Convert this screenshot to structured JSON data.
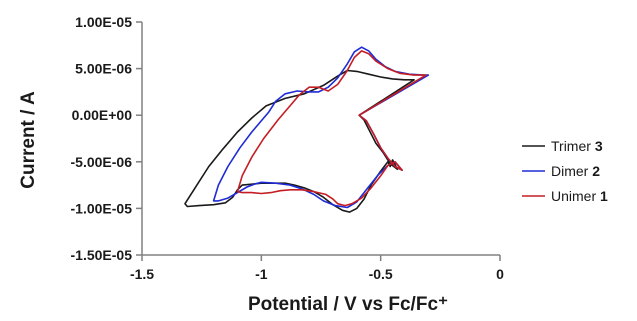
{
  "chart_data": {
    "type": "line",
    "title": "",
    "xlabel": "Potential / V vs Fc/Fc⁺",
    "ylabel": "Current / A",
    "xlim": [
      -1.5,
      0
    ],
    "ylim": [
      -1.5e-05,
      1e-05
    ],
    "x_ticks": [
      -1.5,
      -1,
      -0.5,
      0
    ],
    "x_tick_labels": [
      "-1.5",
      "-1",
      "-0.5",
      "0"
    ],
    "y_ticks": [
      1e-05,
      5e-06,
      0,
      -5e-06,
      -1e-05,
      -1.5e-05
    ],
    "y_tick_labels": [
      "1.00E-05",
      "5.00E-06",
      "0.00E+00",
      "-5.00E-06",
      "-1.00E-05",
      "-1.50E-05"
    ],
    "grid": false,
    "legend_position": "right",
    "series": [
      {
        "name": "Trimer",
        "label_suffix": "3",
        "color": "#1a1a1a",
        "points": [
          [
            -0.59,
            0.0
          ],
          [
            -0.57,
            -5e-07
          ],
          [
            -0.55,
            -1.5e-06
          ],
          [
            -0.52,
            -3e-06
          ],
          [
            -0.49,
            -4e-06
          ],
          [
            -0.46,
            -5.2e-06
          ],
          [
            -0.43,
            -5.8e-06
          ],
          [
            -0.45,
            -4.8e-06
          ],
          [
            -0.46,
            -5.5e-06
          ],
          [
            -0.47,
            -5e-06
          ],
          [
            -0.5,
            -6e-06
          ],
          [
            -0.54,
            -7.5e-06
          ],
          [
            -0.57,
            -9e-06
          ],
          [
            -0.6,
            -1e-05
          ],
          [
            -0.63,
            -1.04e-05
          ],
          [
            -0.66,
            -1.02e-05
          ],
          [
            -0.7,
            -9.6e-06
          ],
          [
            -0.74,
            -8.8e-06
          ],
          [
            -0.78,
            -8.2e-06
          ],
          [
            -0.82,
            -7.8e-06
          ],
          [
            -0.86,
            -7.5e-06
          ],
          [
            -0.9,
            -7.3e-06
          ],
          [
            -0.95,
            -7.3e-06
          ],
          [
            -1.0,
            -7.3e-06
          ],
          [
            -1.04,
            -7.4e-06
          ],
          [
            -1.08,
            -7.5e-06
          ],
          [
            -1.1,
            -8e-06
          ],
          [
            -1.12,
            -8.8e-06
          ],
          [
            -1.15,
            -9.4e-06
          ],
          [
            -1.2,
            -9.6e-06
          ],
          [
            -1.26,
            -9.7e-06
          ],
          [
            -1.31,
            -9.8e-06
          ],
          [
            -1.32,
            -9.5e-06
          ],
          [
            -1.27,
            -7.5e-06
          ],
          [
            -1.22,
            -5.5e-06
          ],
          [
            -1.16,
            -3.6e-06
          ],
          [
            -1.1,
            -1.8e-06
          ],
          [
            -1.04,
            -3e-07
          ],
          [
            -0.98,
            1e-06
          ],
          [
            -0.9,
            1.8e-06
          ],
          [
            -0.82,
            2.3e-06
          ],
          [
            -0.74,
            3.2e-06
          ],
          [
            -0.68,
            4.2e-06
          ],
          [
            -0.64,
            4.8e-06
          ],
          [
            -0.6,
            4.7e-06
          ],
          [
            -0.55,
            4.4e-06
          ],
          [
            -0.5,
            4.1e-06
          ],
          [
            -0.45,
            3.9e-06
          ],
          [
            -0.4,
            3.8e-06
          ],
          [
            -0.36,
            3.8e-06
          ]
        ]
      },
      {
        "name": "Dimer",
        "label_suffix": "2",
        "color": "#1f2bd6",
        "points": [
          [
            -0.59,
            0.0
          ],
          [
            -0.56,
            -6e-07
          ],
          [
            -0.53,
            -2e-06
          ],
          [
            -0.5,
            -3.5e-06
          ],
          [
            -0.47,
            -4.6e-06
          ],
          [
            -0.44,
            -5.5e-06
          ],
          [
            -0.41,
            -5.9e-06
          ],
          [
            -0.44,
            -5e-06
          ],
          [
            -0.47,
            -5.4e-06
          ],
          [
            -0.51,
            -6.4e-06
          ],
          [
            -0.56,
            -8e-06
          ],
          [
            -0.6,
            -9.3e-06
          ],
          [
            -0.64,
            -9.9e-06
          ],
          [
            -0.69,
            -9.7e-06
          ],
          [
            -0.74,
            -9.2e-06
          ],
          [
            -0.78,
            -8.5e-06
          ],
          [
            -0.83,
            -7.9e-06
          ],
          [
            -0.88,
            -7.5e-06
          ],
          [
            -0.94,
            -7.3e-06
          ],
          [
            -1.0,
            -7.2e-06
          ],
          [
            -1.03,
            -7.4e-06
          ],
          [
            -1.06,
            -7.7e-06
          ],
          [
            -1.1,
            -8.3e-06
          ],
          [
            -1.14,
            -8.9e-06
          ],
          [
            -1.18,
            -9.2e-06
          ],
          [
            -1.2,
            -9.2e-06
          ],
          [
            -1.18,
            -7.5e-06
          ],
          [
            -1.14,
            -5.5e-06
          ],
          [
            -1.09,
            -3.5e-06
          ],
          [
            -1.04,
            -1.8e-06
          ],
          [
            -0.99,
            -3e-07
          ],
          [
            -0.97,
            3e-07
          ],
          [
            -0.94,
            1.5e-06
          ],
          [
            -0.9,
            2.3e-06
          ],
          [
            -0.85,
            2.6e-06
          ],
          [
            -0.8,
            2.5e-06
          ],
          [
            -0.76,
            2.5e-06
          ],
          [
            -0.72,
            3e-06
          ],
          [
            -0.68,
            4e-06
          ],
          [
            -0.64,
            5.5e-06
          ],
          [
            -0.61,
            6.8e-06
          ],
          [
            -0.58,
            7.3e-06
          ],
          [
            -0.55,
            6.9e-06
          ],
          [
            -0.52,
            6e-06
          ],
          [
            -0.48,
            5.2e-06
          ],
          [
            -0.44,
            4.7e-06
          ],
          [
            -0.38,
            4.4e-06
          ],
          [
            -0.32,
            4.3e-06
          ],
          [
            -0.3,
            4.3e-06
          ]
        ]
      },
      {
        "name": "Unimer",
        "label_suffix": "1",
        "color": "#c41e24",
        "points": [
          [
            -0.59,
            0.0
          ],
          [
            -0.56,
            -6e-07
          ],
          [
            -0.53,
            -2e-06
          ],
          [
            -0.5,
            -3.5e-06
          ],
          [
            -0.47,
            -4.6e-06
          ],
          [
            -0.44,
            -5.5e-06
          ],
          [
            -0.41,
            -5.9e-06
          ],
          [
            -0.44,
            -5e-06
          ],
          [
            -0.47,
            -5.4e-06
          ],
          [
            -0.5,
            -6.5e-06
          ],
          [
            -0.54,
            -7.8e-06
          ],
          [
            -0.58,
            -8.9e-06
          ],
          [
            -0.62,
            -9.5e-06
          ],
          [
            -0.65,
            -9.7e-06
          ],
          [
            -0.68,
            -9.5e-06
          ],
          [
            -0.7,
            -9e-06
          ],
          [
            -0.73,
            -8.5e-06
          ],
          [
            -0.78,
            -8.2e-06
          ],
          [
            -0.83,
            -8e-06
          ],
          [
            -0.88,
            -8e-06
          ],
          [
            -0.92,
            -8.1e-06
          ],
          [
            -0.96,
            -8.3e-06
          ],
          [
            -1.0,
            -8.4e-06
          ],
          [
            -1.04,
            -8.3e-06
          ],
          [
            -1.08,
            -8.3e-06
          ],
          [
            -1.1,
            -8.2e-06
          ],
          [
            -1.08,
            -6.5e-06
          ],
          [
            -1.04,
            -4.5e-06
          ],
          [
            -0.99,
            -2.5e-06
          ],
          [
            -0.93,
            -5e-07
          ],
          [
            -0.88,
            1e-06
          ],
          [
            -0.84,
            2.2e-06
          ],
          [
            -0.8,
            3e-06
          ],
          [
            -0.76,
            3e-06
          ],
          [
            -0.72,
            2.6e-06
          ],
          [
            -0.68,
            3.3e-06
          ],
          [
            -0.64,
            4.8e-06
          ],
          [
            -0.61,
            6.2e-06
          ],
          [
            -0.58,
            6.9e-06
          ],
          [
            -0.55,
            6.6e-06
          ],
          [
            -0.52,
            5.8e-06
          ],
          [
            -0.47,
            5e-06
          ],
          [
            -0.42,
            4.5e-06
          ],
          [
            -0.36,
            4.3e-06
          ],
          [
            -0.31,
            4.3e-06
          ]
        ]
      }
    ]
  }
}
